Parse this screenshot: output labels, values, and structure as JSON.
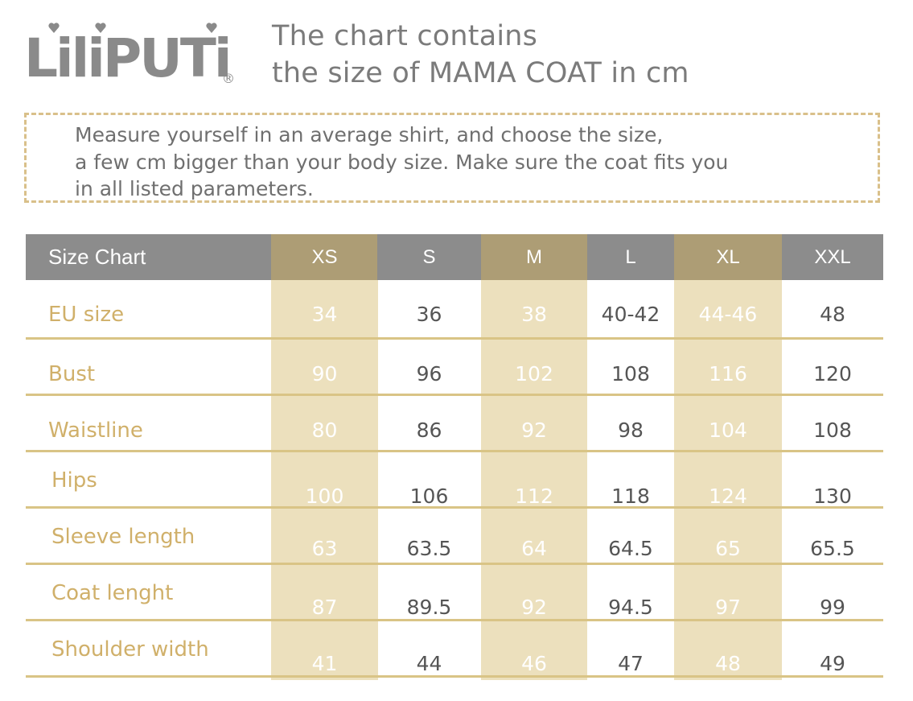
{
  "brand": {
    "logo_text": "LiliPUTi",
    "registered_mark": "®"
  },
  "title": {
    "line1": "The chart contains",
    "line2": "the size of MAMA COAT in cm"
  },
  "note": {
    "line1": "Measure yourself in an average shirt, and choose the size,",
    "line2": "a few cm bigger than your body size. Make  sure the coat fits you",
    "line3": "in all listed parameters."
  },
  "colors": {
    "header_grey": "#8c8c8c",
    "header_tan": "#ad9d75",
    "band": "#ece0bd",
    "label_gold": "#d0b06a",
    "dash": "#d9c08a"
  },
  "table": {
    "corner_label": "Size Chart",
    "sizes": [
      "XS",
      "S",
      "M",
      "L",
      "XL",
      "XXL"
    ],
    "rows": [
      {
        "label": "EU size",
        "values": [
          "34",
          "36",
          "38",
          "40-42",
          "44-46",
          "48"
        ]
      },
      {
        "label": "Bust",
        "values": [
          "90",
          "96",
          "102",
          "108",
          "116",
          "120"
        ]
      },
      {
        "label": "Waistline",
        "values": [
          "80",
          "86",
          "92",
          "98",
          "104",
          "108"
        ]
      },
      {
        "label": "Hips",
        "values": [
          "100",
          "106",
          "112",
          "118",
          "124",
          "130"
        ]
      },
      {
        "label": "Sleeve length",
        "values": [
          "63",
          "63.5",
          "64",
          "64.5",
          "65",
          "65.5"
        ]
      },
      {
        "label": "Coat lenght",
        "values": [
          "87",
          "89.5",
          "92",
          "94.5",
          "97",
          "99"
        ]
      },
      {
        "label": "Shoulder width",
        "values": [
          "41",
          "44",
          "46",
          "47",
          "48",
          "49"
        ]
      }
    ]
  }
}
